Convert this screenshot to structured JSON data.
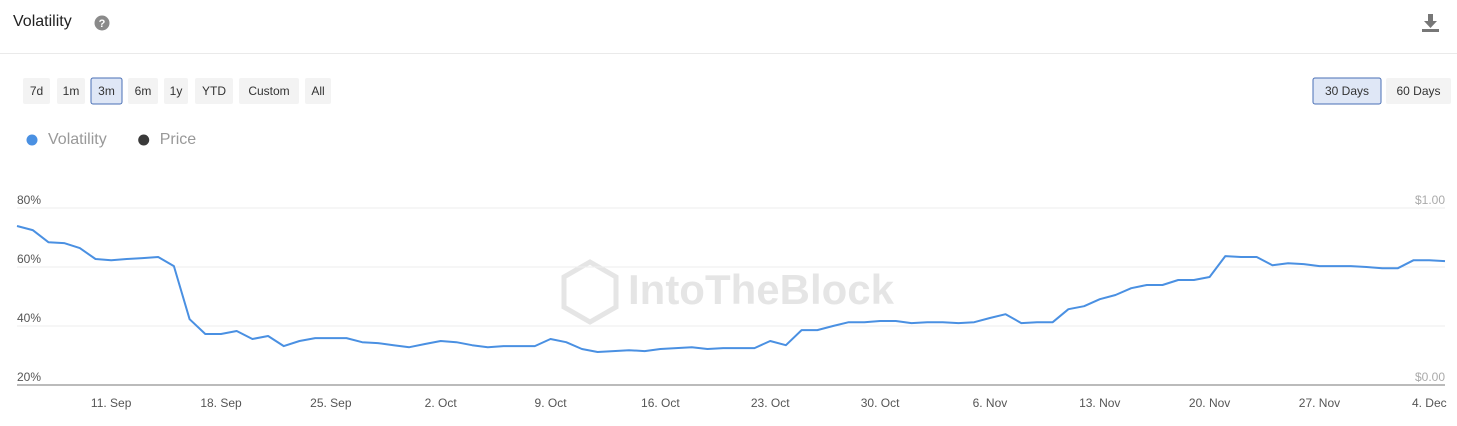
{
  "chart_data": {
    "type": "line",
    "title": "Volatility",
    "watermark": "IntoTheBlock",
    "range_buttons": [
      "7d",
      "1m",
      "3m",
      "6m",
      "1y",
      "YTD",
      "Custom",
      "All"
    ],
    "active_range": 2,
    "window_buttons": [
      "30 Days",
      "60 Days"
    ],
    "active_window": 0,
    "categories": [
      null,
      null,
      null,
      null,
      null,
      null,
      "11. Sep",
      null,
      null,
      null,
      null,
      null,
      null,
      "18. Sep",
      null,
      null,
      null,
      null,
      null,
      null,
      "25. Sep",
      null,
      null,
      null,
      null,
      null,
      null,
      "2. Oct",
      null,
      null,
      null,
      null,
      null,
      null,
      "9. Oct",
      null,
      null,
      null,
      null,
      null,
      null,
      "16. Oct",
      null,
      null,
      null,
      null,
      null,
      null,
      "23. Oct",
      null,
      null,
      null,
      null,
      null,
      null,
      "30. Oct",
      null,
      null,
      null,
      null,
      null,
      null,
      "6. Nov",
      null,
      null,
      null,
      null,
      null,
      null,
      "13. Nov",
      null,
      null,
      null,
      null,
      null,
      null,
      "20. Nov",
      null,
      null,
      null,
      null,
      null,
      null,
      "27. Nov",
      null,
      null,
      null,
      null,
      null,
      null,
      "4. Dec",
      null
    ],
    "series": [
      {
        "name": "Volatility",
        "color": "#4a90e2",
        "values": [
          73.9,
          72.5,
          68.4,
          68.1,
          66.4,
          62.7,
          62.3,
          62.7,
          63.0,
          63.4,
          60.3,
          42.3,
          37.3,
          37.3,
          38.3,
          35.6,
          36.6,
          33.2,
          34.9,
          35.9,
          35.9,
          35.9,
          34.5,
          34.2,
          33.5,
          32.8,
          33.9,
          34.9,
          34.5,
          33.5,
          32.8,
          33.2,
          33.2,
          33.2,
          35.6,
          34.5,
          32.2,
          31.2,
          31.5,
          31.8,
          31.5,
          32.2,
          32.5,
          32.8,
          32.2,
          32.5,
          32.5,
          32.5,
          34.9,
          33.5,
          38.6,
          38.6,
          40.0,
          41.3,
          41.3,
          41.7,
          41.7,
          41.0,
          41.3,
          41.3,
          41.0,
          41.3,
          42.7,
          44.0,
          41.0,
          41.3,
          41.3,
          45.7,
          46.7,
          49.1,
          50.5,
          52.8,
          53.9,
          53.9,
          55.6,
          55.6,
          56.6,
          63.7,
          63.4,
          63.4,
          60.6,
          61.3,
          61.0,
          60.3,
          60.3,
          60.3,
          60.0,
          59.6,
          59.6,
          62.3,
          62.3,
          62.0
        ]
      },
      {
        "name": "Price",
        "color": "#3a3a3a",
        "axis": "y2",
        "values": [
          null,
          null,
          null,
          null,
          null,
          null,
          null,
          null,
          null,
          null,
          null,
          null,
          null,
          null,
          null,
          null,
          null,
          null,
          null,
          null,
          null,
          null,
          null,
          null,
          null,
          null,
          null,
          null,
          null,
          null,
          null,
          null,
          null,
          null,
          null,
          null,
          null,
          null,
          null,
          null,
          null,
          null,
          null,
          null,
          null,
          null,
          null,
          null,
          null,
          null,
          null,
          null,
          null,
          null,
          null,
          null,
          null,
          null,
          null,
          null,
          null,
          null,
          null,
          null,
          null,
          null,
          null,
          null,
          null,
          null,
          null,
          null,
          null,
          null,
          null,
          null,
          null,
          null,
          null,
          null,
          null,
          null,
          null,
          null,
          null,
          null,
          null,
          null,
          null,
          null,
          null,
          null
        ]
      }
    ],
    "ylim": [
      20,
      80
    ],
    "yticks": [
      {
        "value": 20,
        "label": "20%"
      },
      {
        "value": 40,
        "label": "40%"
      },
      {
        "value": 60,
        "label": "60%"
      },
      {
        "value": 80,
        "label": "80%"
      }
    ],
    "y2lim": [
      0,
      1
    ],
    "y2ticks": [
      {
        "value": 0,
        "label": "$0.00"
      },
      {
        "value": 1,
        "label": "$1.00"
      }
    ],
    "grid": true
  }
}
